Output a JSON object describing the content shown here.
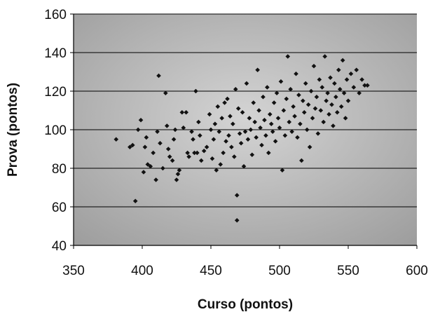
{
  "chart_data": {
    "type": "scatter",
    "title": "",
    "xlabel": "Curso (pontos)",
    "ylabel": "Prova (pontos)",
    "xlim": [
      350,
      600
    ],
    "ylim": [
      40,
      160
    ],
    "x_ticks": [
      "350",
      "400",
      "450",
      "500",
      "550",
      "600"
    ],
    "y_ticks": [
      "40",
      "60",
      "80",
      "100",
      "120",
      "140",
      "160"
    ],
    "grid": "horizontal",
    "legend": "none",
    "colors": {
      "plot_bg": "#b9b9b9",
      "marker": "#111111",
      "gridline": "#000000"
    },
    "series": [
      {
        "points": [
          [
            381,
            95
          ],
          [
            391,
            91
          ],
          [
            393,
            92
          ],
          [
            395,
            63
          ],
          [
            397,
            100
          ],
          [
            399,
            105
          ],
          [
            401,
            78
          ],
          [
            402,
            91
          ],
          [
            403,
            96
          ],
          [
            404,
            82
          ],
          [
            406,
            81
          ],
          [
            408,
            88
          ],
          [
            410,
            74
          ],
          [
            411,
            99
          ],
          [
            412,
            128
          ],
          [
            413,
            93
          ],
          [
            415,
            80
          ],
          [
            417,
            119
          ],
          [
            418,
            102
          ],
          [
            419,
            90
          ],
          [
            420,
            86
          ],
          [
            422,
            84
          ],
          [
            423,
            95
          ],
          [
            424,
            100
          ],
          [
            425,
            74
          ],
          [
            426,
            77
          ],
          [
            427,
            79
          ],
          [
            429,
            109
          ],
          [
            430,
            101
          ],
          [
            432,
            109
          ],
          [
            433,
            88
          ],
          [
            434,
            86
          ],
          [
            436,
            99
          ],
          [
            437,
            95
          ],
          [
            438,
            88
          ],
          [
            439,
            120
          ],
          [
            440,
            88
          ],
          [
            441,
            104
          ],
          [
            442,
            97
          ],
          [
            443,
            84
          ],
          [
            445,
            89
          ],
          [
            447,
            91
          ],
          [
            449,
            108
          ],
          [
            450,
            100
          ],
          [
            451,
            85
          ],
          [
            452,
            95
          ],
          [
            453,
            103
          ],
          [
            454,
            79
          ],
          [
            455,
            112
          ],
          [
            456,
            99
          ],
          [
            457,
            82
          ],
          [
            458,
            106
          ],
          [
            459,
            88
          ],
          [
            460,
            114
          ],
          [
            461,
            94
          ],
          [
            462,
            116
          ],
          [
            463,
            97
          ],
          [
            464,
            107
          ],
          [
            465,
            91
          ],
          [
            466,
            103
          ],
          [
            467,
            86
          ],
          [
            468,
            121
          ],
          [
            469,
            66
          ],
          [
            469,
            53
          ],
          [
            470,
            111
          ],
          [
            471,
            98
          ],
          [
            472,
            93
          ],
          [
            473,
            109
          ],
          [
            474,
            81
          ],
          [
            475,
            99
          ],
          [
            476,
            124
          ],
          [
            477,
            95
          ],
          [
            478,
            106
          ],
          [
            479,
            100
          ],
          [
            480,
            87
          ],
          [
            481,
            114
          ],
          [
            482,
            104
          ],
          [
            483,
            96
          ],
          [
            484,
            131
          ],
          [
            485,
            110
          ],
          [
            486,
            101
          ],
          [
            487,
            92
          ],
          [
            488,
            117
          ],
          [
            489,
            105
          ],
          [
            490,
            97
          ],
          [
            491,
            122
          ],
          [
            492,
            88
          ],
          [
            493,
            108
          ],
          [
            494,
            103
          ],
          [
            495,
            99
          ],
          [
            496,
            114
          ],
          [
            497,
            94
          ],
          [
            498,
            119
          ],
          [
            499,
            106
          ],
          [
            500,
            101
          ],
          [
            501,
            125
          ],
          [
            502,
            79
          ],
          [
            503,
            110
          ],
          [
            504,
            97
          ],
          [
            505,
            116
          ],
          [
            506,
            138
          ],
          [
            507,
            104
          ],
          [
            508,
            121
          ],
          [
            509,
            99
          ],
          [
            510,
            112
          ],
          [
            511,
            107
          ],
          [
            512,
            129
          ],
          [
            513,
            96
          ],
          [
            514,
            118
          ],
          [
            515,
            103
          ],
          [
            516,
            84
          ],
          [
            517,
            115
          ],
          [
            518,
            109
          ],
          [
            519,
            124
          ],
          [
            520,
            100
          ],
          [
            521,
            113
          ],
          [
            522,
            91
          ],
          [
            523,
            120
          ],
          [
            524,
            106
          ],
          [
            525,
            133
          ],
          [
            526,
            111
          ],
          [
            527,
            117
          ],
          [
            528,
            98
          ],
          [
            529,
            126
          ],
          [
            530,
            110
          ],
          [
            531,
            122
          ],
          [
            532,
            104
          ],
          [
            533,
            138
          ],
          [
            534,
            115
          ],
          [
            535,
            119
          ],
          [
            536,
            108
          ],
          [
            537,
            127
          ],
          [
            538,
            113
          ],
          [
            539,
            102
          ],
          [
            540,
            124
          ],
          [
            541,
            117
          ],
          [
            542,
            109
          ],
          [
            543,
            131
          ],
          [
            544,
            121
          ],
          [
            545,
            112
          ],
          [
            546,
            136
          ],
          [
            547,
            119
          ],
          [
            548,
            106
          ],
          [
            549,
            126
          ],
          [
            550,
            115
          ],
          [
            552,
            129
          ],
          [
            554,
            122
          ],
          [
            556,
            131
          ],
          [
            558,
            119
          ],
          [
            560,
            126
          ],
          [
            562,
            123
          ],
          [
            564,
            123
          ]
        ]
      }
    ]
  }
}
